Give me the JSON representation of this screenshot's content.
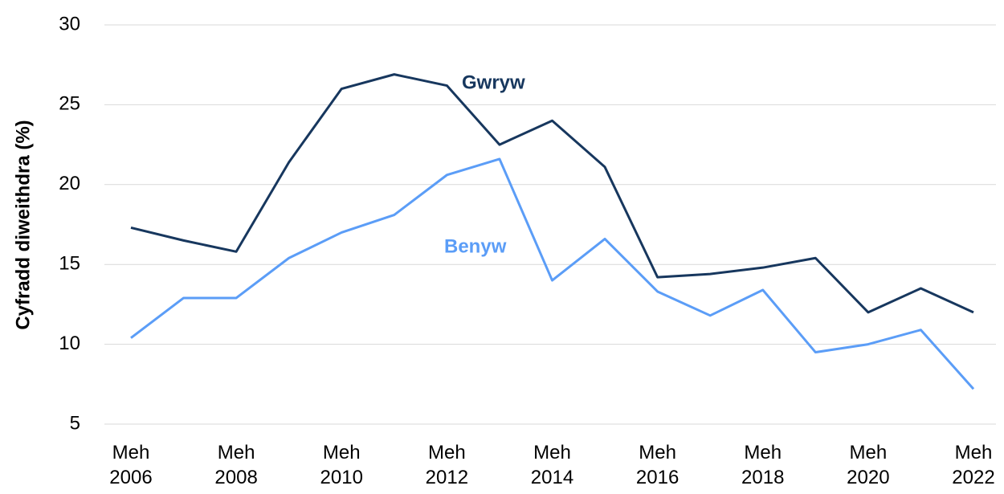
{
  "chart_data": {
    "type": "line",
    "y_label": "Cyfradd diweithdra (%)",
    "categories": [
      "Meh 2006",
      null,
      "Meh 2008",
      null,
      "Meh 2010",
      null,
      "Meh 2012",
      null,
      "Meh 2014",
      null,
      "Meh 2016",
      null,
      "Meh 2018",
      null,
      "Meh 2020",
      null,
      "Meh 2022"
    ],
    "series": [
      {
        "name": "Gwryw",
        "color": "#17375e",
        "values": [
          17.3,
          16.5,
          15.8,
          21.4,
          26.0,
          26.9,
          26.2,
          22.5,
          24.0,
          21.1,
          14.2,
          14.4,
          14.8,
          15.4,
          12.0,
          13.5,
          12.0
        ]
      },
      {
        "name": "Benyw",
        "color": "#5b9df7",
        "values": [
          10.4,
          12.9,
          12.9,
          15.4,
          17.0,
          18.1,
          20.6,
          21.6,
          14.0,
          16.6,
          13.3,
          11.8,
          13.4,
          9.5,
          10.0,
          10.9,
          7.2
        ]
      }
    ],
    "ylim": [
      5,
      30
    ],
    "yticks": [
      5,
      10,
      15,
      20,
      25,
      30
    ],
    "grid": true
  }
}
